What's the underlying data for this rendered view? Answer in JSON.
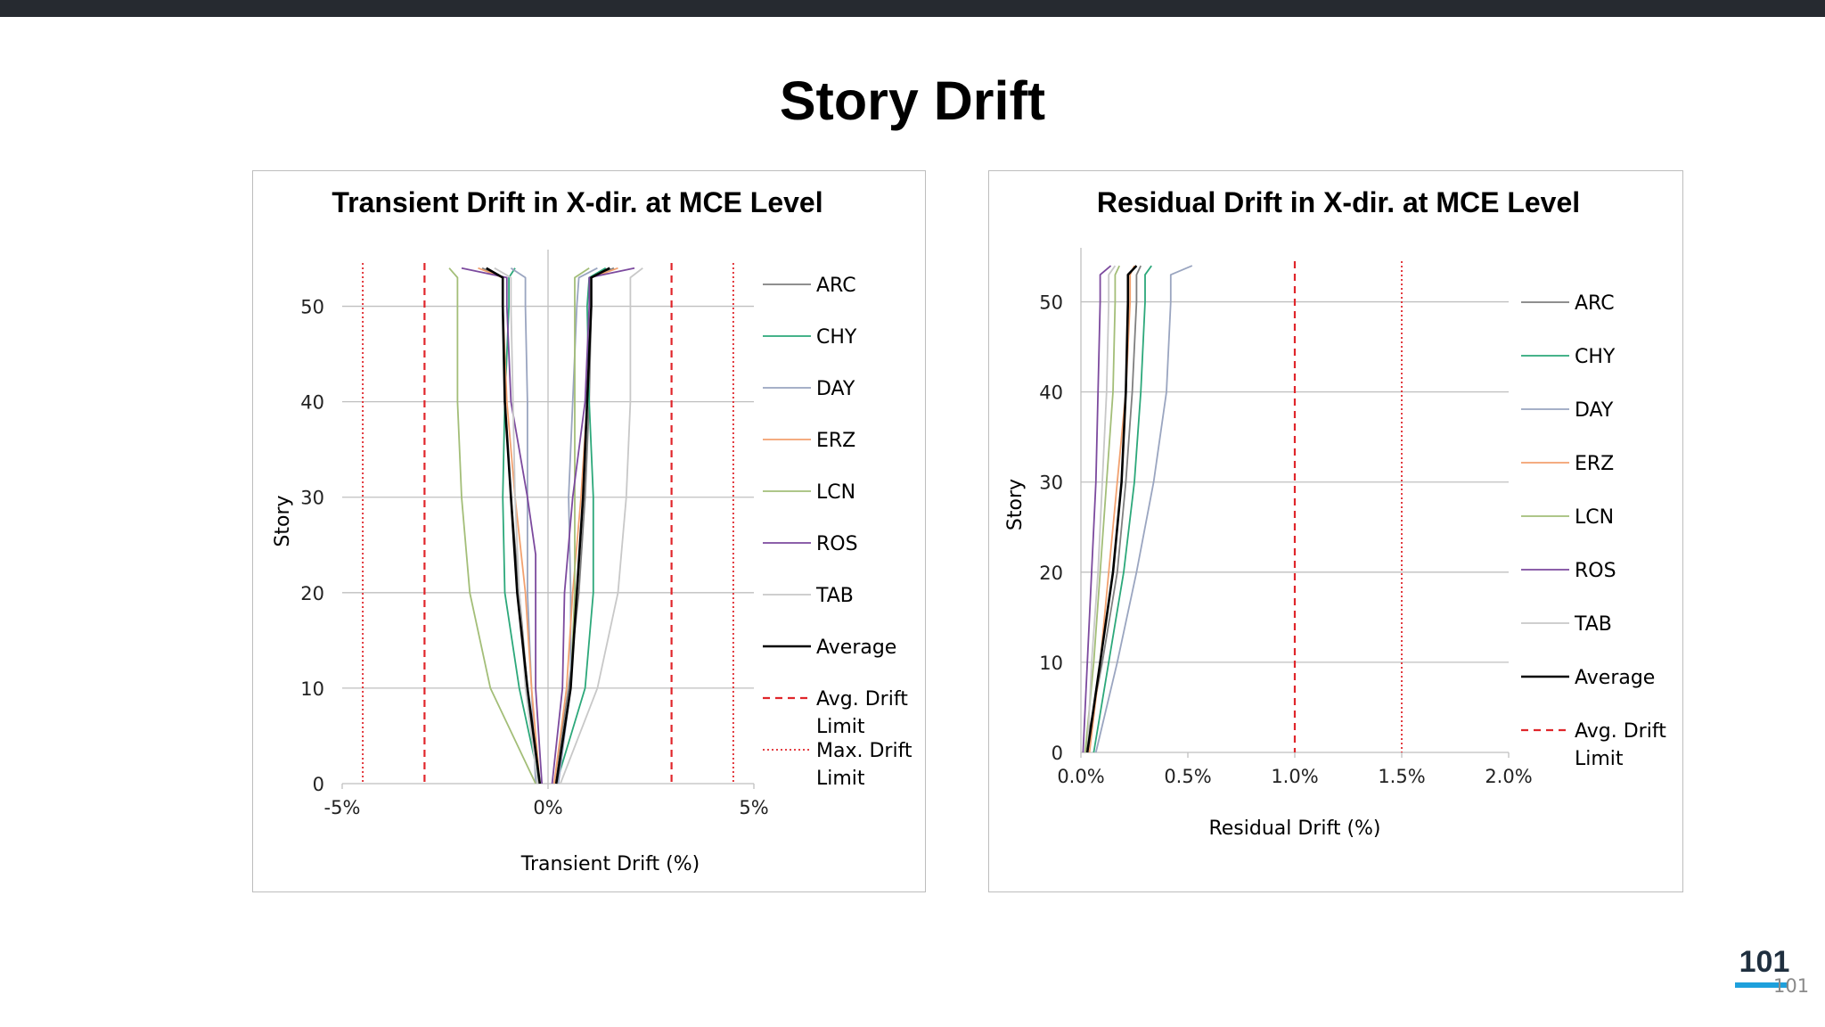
{
  "slide": {
    "title": "Story Drift",
    "page_number": "101",
    "page_number_small": "101"
  },
  "colors": {
    "ARC": "#7f7f7f",
    "CHY": "#2ca87a",
    "DAY": "#9aa5c0",
    "ERZ": "#f2a16f",
    "LCN": "#a3be78",
    "ROS": "#7c4a9e",
    "TAB": "#c8c8c8",
    "Average": "#000000",
    "limit": "#e0262b",
    "grid": "#bfbfbf",
    "zero_axis": "#bfbfbf"
  },
  "chart_data": [
    {
      "type": "line",
      "title": "Transient Drift in X-dir. at MCE Level",
      "xlabel": "Transient Drift (%)",
      "ylabel": "Story",
      "xlim": [
        -5,
        5
      ],
      "ylim": [
        0,
        55
      ],
      "x_ticks": [
        -5,
        0,
        5
      ],
      "x_tick_labels": [
        "-5%",
        "0%",
        "5%"
      ],
      "y_ticks": [
        0,
        10,
        20,
        30,
        40,
        50
      ],
      "grid": "horizontal",
      "legend_position": "right",
      "legend": [
        "ARC",
        "CHY",
        "DAY",
        "ERZ",
        "LCN",
        "ROS",
        "TAB",
        "Average",
        "Avg. Drift Limit",
        "Max. Drift Limit"
      ],
      "series": [
        {
          "name": "ARC",
          "side": "pos",
          "points": [
            [
              0.15,
              0
            ],
            [
              0.5,
              10
            ],
            [
              0.75,
              20
            ],
            [
              0.9,
              30
            ],
            [
              1.0,
              40
            ],
            [
              1.05,
              50
            ],
            [
              1.05,
              53
            ],
            [
              1.6,
              54
            ]
          ]
        },
        {
          "name": "CHY",
          "side": "pos",
          "points": [
            [
              0.2,
              0
            ],
            [
              0.9,
              10
            ],
            [
              1.1,
              20
            ],
            [
              1.1,
              30
            ],
            [
              1.0,
              40
            ],
            [
              0.95,
              50
            ],
            [
              1.0,
              53
            ],
            [
              1.4,
              54
            ]
          ]
        },
        {
          "name": "DAY",
          "side": "pos",
          "points": [
            [
              0.25,
              0
            ],
            [
              0.55,
              10
            ],
            [
              0.55,
              20
            ],
            [
              0.5,
              30
            ],
            [
              0.6,
              40
            ],
            [
              0.7,
              50
            ],
            [
              0.75,
              53
            ],
            [
              1.2,
              54
            ]
          ]
        },
        {
          "name": "ERZ",
          "side": "pos",
          "points": [
            [
              0.15,
              0
            ],
            [
              0.45,
              10
            ],
            [
              0.6,
              20
            ],
            [
              0.8,
              30
            ],
            [
              0.95,
              40
            ],
            [
              1.05,
              50
            ],
            [
              1.05,
              53
            ],
            [
              1.7,
              54
            ]
          ]
        },
        {
          "name": "LCN",
          "side": "pos",
          "points": [
            [
              0.2,
              0
            ],
            [
              0.55,
              10
            ],
            [
              0.65,
              20
            ],
            [
              0.65,
              30
            ],
            [
              0.65,
              40
            ],
            [
              0.65,
              50
            ],
            [
              0.65,
              53
            ],
            [
              1.0,
              54
            ]
          ]
        },
        {
          "name": "ROS",
          "side": "pos",
          "points": [
            [
              0.1,
              0
            ],
            [
              0.35,
              10
            ],
            [
              0.4,
              20
            ],
            [
              0.6,
              30
            ],
            [
              0.9,
              40
            ],
            [
              1.0,
              50
            ],
            [
              1.0,
              53
            ],
            [
              2.1,
              54
            ]
          ]
        },
        {
          "name": "TAB",
          "side": "pos",
          "points": [
            [
              0.3,
              0
            ],
            [
              1.2,
              10
            ],
            [
              1.7,
              20
            ],
            [
              1.9,
              30
            ],
            [
              2.0,
              40
            ],
            [
              2.0,
              50
            ],
            [
              2.0,
              53
            ],
            [
              2.3,
              54
            ]
          ]
        },
        {
          "name": "Average",
          "side": "pos",
          "points": [
            [
              0.2,
              0
            ],
            [
              0.55,
              10
            ],
            [
              0.7,
              20
            ],
            [
              0.85,
              30
            ],
            [
              0.95,
              40
            ],
            [
              1.05,
              50
            ],
            [
              1.05,
              53
            ],
            [
              1.5,
              54
            ]
          ]
        },
        {
          "name": "ARC",
          "side": "neg",
          "points": [
            [
              -0.25,
              0
            ],
            [
              -0.5,
              10
            ],
            [
              -0.7,
              20
            ],
            [
              -0.9,
              30
            ],
            [
              -1.05,
              40
            ],
            [
              -1.1,
              50
            ],
            [
              -1.1,
              53
            ],
            [
              -1.6,
              54
            ]
          ]
        },
        {
          "name": "CHY",
          "side": "neg",
          "points": [
            [
              -0.2,
              0
            ],
            [
              -0.7,
              10
            ],
            [
              -1.05,
              20
            ],
            [
              -1.1,
              30
            ],
            [
              -1.05,
              40
            ],
            [
              -0.95,
              50
            ],
            [
              -0.95,
              53
            ],
            [
              -0.8,
              54
            ]
          ]
        },
        {
          "name": "DAY",
          "side": "neg",
          "points": [
            [
              -0.3,
              0
            ],
            [
              -0.4,
              10
            ],
            [
              -0.5,
              20
            ],
            [
              -0.5,
              30
            ],
            [
              -0.5,
              40
            ],
            [
              -0.55,
              50
            ],
            [
              -0.55,
              53
            ],
            [
              -0.9,
              54
            ]
          ]
        },
        {
          "name": "ERZ",
          "side": "neg",
          "points": [
            [
              -0.2,
              0
            ],
            [
              -0.4,
              10
            ],
            [
              -0.55,
              20
            ],
            [
              -0.8,
              30
            ],
            [
              -1.0,
              40
            ],
            [
              -1.1,
              50
            ],
            [
              -1.1,
              53
            ],
            [
              -1.7,
              54
            ]
          ]
        },
        {
          "name": "LCN",
          "side": "neg",
          "points": [
            [
              -0.3,
              0
            ],
            [
              -1.4,
              10
            ],
            [
              -1.9,
              20
            ],
            [
              -2.1,
              30
            ],
            [
              -2.2,
              40
            ],
            [
              -2.2,
              50
            ],
            [
              -2.2,
              53
            ],
            [
              -2.4,
              54
            ]
          ]
        },
        {
          "name": "ROS",
          "side": "neg",
          "points": [
            [
              -0.15,
              0
            ],
            [
              -0.3,
              10
            ],
            [
              -0.3,
              20
            ],
            [
              -0.3,
              24
            ],
            [
              -0.5,
              30
            ],
            [
              -0.9,
              40
            ],
            [
              -1.0,
              50
            ],
            [
              -1.0,
              53
            ],
            [
              -2.1,
              54
            ]
          ]
        },
        {
          "name": "TAB",
          "side": "neg",
          "points": [
            [
              -0.25,
              0
            ],
            [
              -0.55,
              10
            ],
            [
              -0.7,
              20
            ],
            [
              -0.8,
              30
            ],
            [
              -0.85,
              40
            ],
            [
              -0.9,
              50
            ],
            [
              -0.9,
              53
            ],
            [
              -1.3,
              54
            ]
          ]
        },
        {
          "name": "Average",
          "side": "neg",
          "points": [
            [
              -0.2,
              0
            ],
            [
              -0.5,
              10
            ],
            [
              -0.75,
              20
            ],
            [
              -0.9,
              30
            ],
            [
              -1.05,
              40
            ],
            [
              -1.1,
              50
            ],
            [
              -1.1,
              53
            ],
            [
              -1.5,
              54
            ]
          ]
        }
      ],
      "limits": [
        {
          "name": "Avg. Drift Limit",
          "x": -3.0,
          "style": "dashed"
        },
        {
          "name": "Avg. Drift Limit",
          "x": 3.0,
          "style": "dashed"
        },
        {
          "name": "Max. Drift Limit",
          "x": -4.5,
          "style": "dotted"
        },
        {
          "name": "Max. Drift Limit",
          "x": 4.5,
          "style": "dotted"
        }
      ]
    },
    {
      "type": "line",
      "title": "Residual Drift in X-dir. at MCE Level",
      "xlabel": "Residual Drift (%)",
      "ylabel": "Story",
      "xlim": [
        0,
        2.0
      ],
      "ylim": [
        0,
        55
      ],
      "x_ticks": [
        0,
        0.5,
        1.0,
        1.5,
        2.0
      ],
      "x_tick_labels": [
        "0.0%",
        "0.5%",
        "1.0%",
        "1.5%",
        "2.0%"
      ],
      "y_ticks": [
        0,
        10,
        20,
        30,
        40,
        50
      ],
      "grid": "horizontal",
      "legend_position": "right",
      "legend": [
        "ARC",
        "CHY",
        "DAY",
        "ERZ",
        "LCN",
        "ROS",
        "TAB",
        "Average",
        "Avg. Drift Limit"
      ],
      "series": [
        {
          "name": "ARC",
          "points": [
            [
              0.02,
              0
            ],
            [
              0.1,
              10
            ],
            [
              0.17,
              20
            ],
            [
              0.21,
              30
            ],
            [
              0.24,
              40
            ],
            [
              0.26,
              50
            ],
            [
              0.26,
              53
            ],
            [
              0.28,
              54
            ]
          ]
        },
        {
          "name": "CHY",
          "points": [
            [
              0.06,
              0
            ],
            [
              0.13,
              10
            ],
            [
              0.2,
              20
            ],
            [
              0.25,
              30
            ],
            [
              0.28,
              40
            ],
            [
              0.3,
              50
            ],
            [
              0.3,
              53
            ],
            [
              0.33,
              54
            ]
          ]
        },
        {
          "name": "DAY",
          "points": [
            [
              0.07,
              0
            ],
            [
              0.17,
              10
            ],
            [
              0.26,
              20
            ],
            [
              0.34,
              30
            ],
            [
              0.4,
              40
            ],
            [
              0.42,
              50
            ],
            [
              0.42,
              53
            ],
            [
              0.52,
              54
            ]
          ]
        },
        {
          "name": "ERZ",
          "points": [
            [
              0.04,
              0
            ],
            [
              0.09,
              10
            ],
            [
              0.13,
              20
            ],
            [
              0.17,
              30
            ],
            [
              0.21,
              40
            ],
            [
              0.23,
              50
            ],
            [
              0.23,
              53
            ],
            [
              0.25,
              54
            ]
          ]
        },
        {
          "name": "LCN",
          "points": [
            [
              0.02,
              0
            ],
            [
              0.06,
              10
            ],
            [
              0.09,
              20
            ],
            [
              0.12,
              30
            ],
            [
              0.15,
              40
            ],
            [
              0.16,
              50
            ],
            [
              0.16,
              53
            ],
            [
              0.18,
              54
            ]
          ]
        },
        {
          "name": "ROS",
          "points": [
            [
              0.01,
              0
            ],
            [
              0.03,
              10
            ],
            [
              0.05,
              20
            ],
            [
              0.07,
              30
            ],
            [
              0.08,
              40
            ],
            [
              0.09,
              50
            ],
            [
              0.09,
              53
            ],
            [
              0.14,
              54
            ]
          ]
        },
        {
          "name": "TAB",
          "points": [
            [
              0.03,
              0
            ],
            [
              0.05,
              10
            ],
            [
              0.08,
              20
            ],
            [
              0.1,
              30
            ],
            [
              0.12,
              40
            ],
            [
              0.13,
              50
            ],
            [
              0.13,
              53
            ],
            [
              0.16,
              54
            ]
          ]
        },
        {
          "name": "Average",
          "points": [
            [
              0.03,
              0
            ],
            [
              0.09,
              10
            ],
            [
              0.15,
              20
            ],
            [
              0.19,
              30
            ],
            [
              0.21,
              40
            ],
            [
              0.22,
              50
            ],
            [
              0.22,
              53
            ],
            [
              0.26,
              54
            ]
          ]
        }
      ],
      "limits": [
        {
          "name": "Avg. Drift Limit",
          "x": 1.0,
          "style": "dashed"
        },
        {
          "name": "Max. Drift Limit",
          "x": 1.5,
          "style": "dotted"
        }
      ]
    }
  ]
}
